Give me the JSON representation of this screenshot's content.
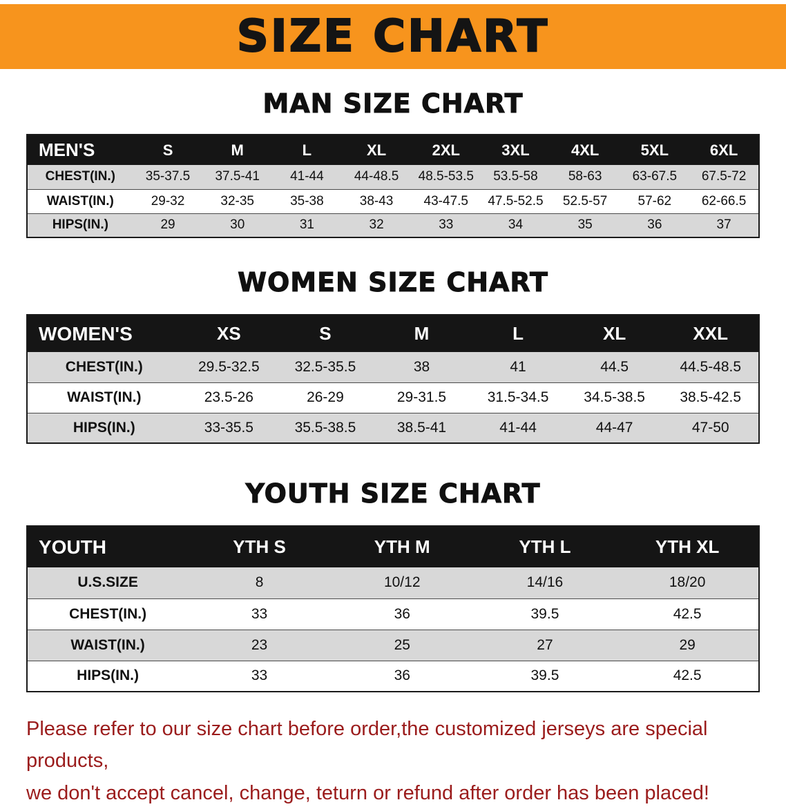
{
  "banner": {
    "title": "SIZE CHART"
  },
  "colors": {
    "banner_bg": "#F7941D",
    "header_bar": "#151515",
    "stripe": "#D8D8D8",
    "notice_text": "#9B1C1C"
  },
  "sections": [
    {
      "id": "men",
      "heading": "MAN SIZE CHART",
      "table": {
        "corner": "MEN'S",
        "columns": [
          "S",
          "M",
          "L",
          "XL",
          "2XL",
          "3XL",
          "4XL",
          "5XL",
          "6XL"
        ],
        "rows": [
          {
            "label": "CHEST(IN.)",
            "values": [
              "35-37.5",
              "37.5-41",
              "41-44",
              "44-48.5",
              "48.5-53.5",
              "53.5-58",
              "58-63",
              "63-67.5",
              "67.5-72"
            ]
          },
          {
            "label": "WAIST(IN.)",
            "values": [
              "29-32",
              "32-35",
              "35-38",
              "38-43",
              "43-47.5",
              "47.5-52.5",
              "52.5-57",
              "57-62",
              "62-66.5"
            ]
          },
          {
            "label": "HIPS(IN.)",
            "values": [
              "29",
              "30",
              "31",
              "32",
              "33",
              "34",
              "35",
              "36",
              "37"
            ]
          }
        ]
      }
    },
    {
      "id": "women",
      "heading": "WOMEN SIZE CHART",
      "table": {
        "corner": "WOMEN'S",
        "columns": [
          "XS",
          "S",
          "M",
          "L",
          "XL",
          "XXL"
        ],
        "rows": [
          {
            "label": "CHEST(IN.)",
            "values": [
              "29.5-32.5",
              "32.5-35.5",
              "38",
              "41",
              "44.5",
              "44.5-48.5"
            ]
          },
          {
            "label": "WAIST(IN.)",
            "values": [
              "23.5-26",
              "26-29",
              "29-31.5",
              "31.5-34.5",
              "34.5-38.5",
              "38.5-42.5"
            ]
          },
          {
            "label": "HIPS(IN.)",
            "values": [
              "33-35.5",
              "35.5-38.5",
              "38.5-41",
              "41-44",
              "44-47",
              "47-50"
            ]
          }
        ]
      }
    },
    {
      "id": "youth",
      "heading": "YOUTH SIZE CHART",
      "table": {
        "corner": "YOUTH",
        "columns": [
          "YTH S",
          "YTH M",
          "YTH L",
          "YTH XL"
        ],
        "rows": [
          {
            "label": "U.S.SIZE",
            "values": [
              "8",
              "10/12",
              "14/16",
              "18/20"
            ]
          },
          {
            "label": "CHEST(IN.)",
            "values": [
              "33",
              "36",
              "39.5",
              "42.5"
            ]
          },
          {
            "label": "WAIST(IN.)",
            "values": [
              "23",
              "25",
              "27",
              "29"
            ]
          },
          {
            "label": "HIPS(IN.)",
            "values": [
              "33",
              "36",
              "39.5",
              "42.5"
            ]
          }
        ]
      }
    }
  ],
  "notice": {
    "line1": "Please refer to our size chart before order,the customized jerseys are special products,",
    "line2": "we don't accept cancel, change, teturn or refund after order has been placed!"
  }
}
